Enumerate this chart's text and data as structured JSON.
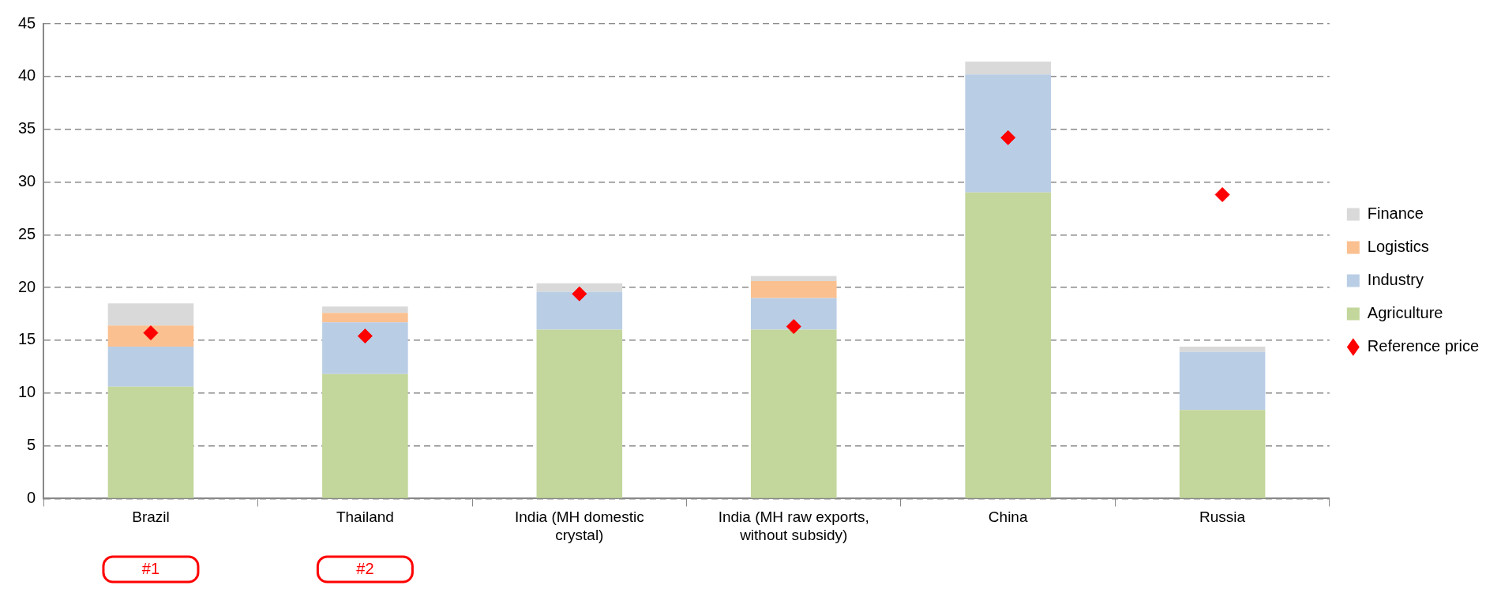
{
  "chart_data": {
    "type": "bar",
    "stacked": true,
    "categories": [
      "Brazil",
      "Thailand",
      "India (MH domestic crystal)",
      "India (MH raw exports, without subsidy)",
      "China",
      "Russia"
    ],
    "series": [
      {
        "name": "Agriculture",
        "color": "#c3d69b",
        "values": [
          10.6,
          11.8,
          16.0,
          16.0,
          29.0,
          8.4
        ]
      },
      {
        "name": "Industry",
        "color": "#b9cde5",
        "values": [
          3.8,
          4.9,
          3.6,
          3.0,
          11.2,
          5.5
        ]
      },
      {
        "name": "Logistics",
        "color": "#fac090",
        "values": [
          2.0,
          0.9,
          0,
          1.6,
          0,
          0
        ]
      },
      {
        "name": "Finance",
        "color": "#d9d9d9",
        "values": [
          2.1,
          0.6,
          0.8,
          0.5,
          1.2,
          0.5
        ]
      },
      {
        "name": "Reference price",
        "type": "scatter",
        "marker": "diamond",
        "color": "#ff0000",
        "values": [
          15.7,
          15.4,
          19.4,
          16.3,
          34.2,
          28.8
        ]
      }
    ],
    "ylim": [
      0,
      45
    ],
    "yticks": [
      0,
      5,
      10,
      15,
      20,
      25,
      30,
      35,
      40,
      45
    ],
    "grid": "y",
    "legend": "right",
    "annotations": [
      "#1",
      "#2"
    ]
  }
}
